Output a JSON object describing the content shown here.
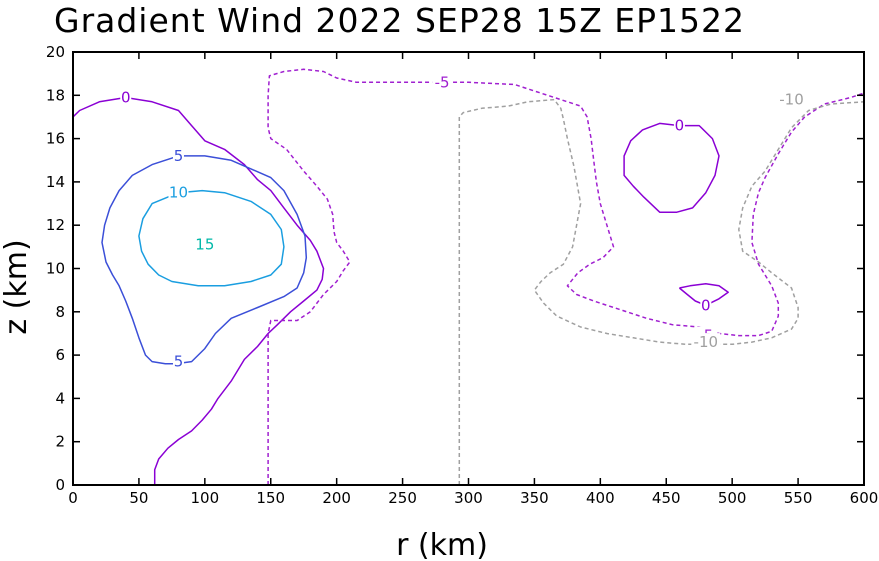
{
  "chart_data": {
    "type": "contour",
    "title": "Gradient Wind 2022 SEP28 15Z  EP1522",
    "xlabel": "r (km)",
    "ylabel": "z (km)",
    "xlim": [
      0,
      600
    ],
    "ylim": [
      0,
      20
    ],
    "xticks": [
      0,
      50,
      100,
      150,
      200,
      250,
      300,
      350,
      400,
      450,
      500,
      550,
      600
    ],
    "yticks": [
      0,
      2,
      4,
      6,
      8,
      10,
      12,
      14,
      16,
      18,
      20
    ],
    "grid": false,
    "colors": {
      "0": "#8a00d4",
      "5": "#3b4fd8",
      "10": "#1a9ee0",
      "15": "#00b8a8",
      "-5": "#a020d0",
      "-10": "#a0a0a0"
    },
    "contours": [
      {
        "level": 0,
        "style": "solid",
        "color": "#8a00d4",
        "label": "0",
        "label_at": [
          40,
          17.9
        ],
        "points": [
          [
            0,
            17.0
          ],
          [
            5,
            17.3
          ],
          [
            20,
            17.7
          ],
          [
            40,
            17.9
          ],
          [
            60,
            17.7
          ],
          [
            80,
            17.3
          ],
          [
            90,
            16.6
          ],
          [
            100,
            15.9
          ],
          [
            115,
            15.5
          ],
          [
            130,
            14.8
          ],
          [
            140,
            14.1
          ],
          [
            150,
            13.6
          ],
          [
            160,
            12.8
          ],
          [
            170,
            12.0
          ],
          [
            180,
            11.3
          ],
          [
            185,
            10.8
          ],
          [
            190,
            10.0
          ],
          [
            189,
            9.5
          ],
          [
            185,
            9.0
          ],
          [
            175,
            8.5
          ],
          [
            165,
            8.0
          ],
          [
            155,
            7.4
          ],
          [
            148,
            7.0
          ],
          [
            140,
            6.4
          ],
          [
            130,
            5.8
          ],
          [
            120,
            4.8
          ],
          [
            110,
            4.0
          ],
          [
            105,
            3.5
          ],
          [
            98,
            3.0
          ],
          [
            90,
            2.5
          ],
          [
            80,
            2.1
          ],
          [
            72,
            1.7
          ],
          [
            65,
            1.2
          ],
          [
            62,
            0.7
          ],
          [
            62,
            0.0
          ]
        ]
      },
      {
        "level": 0,
        "style": "solid",
        "color": "#8a00d4",
        "label": "0",
        "label_at": [
          460,
          16.6
        ],
        "points": [
          [
            460,
            16.6
          ],
          [
            475,
            16.6
          ],
          [
            485,
            16.0
          ],
          [
            490,
            15.2
          ],
          [
            487,
            14.3
          ],
          [
            480,
            13.5
          ],
          [
            470,
            12.8
          ],
          [
            458,
            12.6
          ],
          [
            445,
            12.6
          ],
          [
            433,
            13.3
          ],
          [
            425,
            13.8
          ],
          [
            418,
            14.3
          ],
          [
            418,
            15.2
          ],
          [
            423,
            15.9
          ],
          [
            432,
            16.4
          ],
          [
            445,
            16.7
          ],
          [
            460,
            16.6
          ]
        ]
      },
      {
        "level": 0,
        "style": "solid",
        "color": "#8a00d4",
        "label": "0",
        "label_at": [
          480,
          8.3
        ],
        "points": [
          [
            460,
            9.1
          ],
          [
            468,
            9.2
          ],
          [
            480,
            9.3
          ],
          [
            490,
            9.2
          ],
          [
            497,
            8.9
          ],
          [
            490,
            8.6
          ],
          [
            480,
            8.3
          ],
          [
            472,
            8.5
          ],
          [
            466,
            8.8
          ],
          [
            460,
            9.1
          ]
        ]
      },
      {
        "level": 5,
        "style": "solid",
        "color": "#3b4fd8",
        "label": "5",
        "label_at": [
          80,
          15.2
        ],
        "points": [
          [
            80,
            15.2
          ],
          [
            60,
            14.8
          ],
          [
            45,
            14.3
          ],
          [
            35,
            13.6
          ],
          [
            28,
            12.8
          ],
          [
            24,
            12.0
          ],
          [
            22,
            11.2
          ],
          [
            25,
            10.3
          ],
          [
            30,
            9.7
          ],
          [
            35,
            9.2
          ],
          [
            40,
            8.5
          ],
          [
            45,
            7.7
          ],
          [
            50,
            6.8
          ],
          [
            55,
            6.0
          ],
          [
            60,
            5.7
          ],
          [
            70,
            5.6
          ],
          [
            78,
            5.6
          ],
          [
            90,
            5.7
          ],
          [
            100,
            6.3
          ],
          [
            108,
            7.0
          ],
          [
            120,
            7.7
          ],
          [
            140,
            8.2
          ],
          [
            160,
            8.7
          ],
          [
            170,
            9.1
          ],
          [
            175,
            9.8
          ],
          [
            177,
            10.5
          ],
          [
            176,
            11.5
          ],
          [
            170,
            12.5
          ],
          [
            160,
            13.6
          ],
          [
            150,
            14.2
          ],
          [
            135,
            14.6
          ],
          [
            120,
            15.0
          ],
          [
            100,
            15.2
          ],
          [
            80,
            15.2
          ]
        ]
      },
      {
        "level": 10,
        "style": "solid",
        "color": "#1a9ee0",
        "label": "10",
        "label_at": [
          80,
          13.5
        ],
        "points": [
          [
            80,
            13.5
          ],
          [
            60,
            13.0
          ],
          [
            53,
            12.3
          ],
          [
            50,
            11.5
          ],
          [
            52,
            10.8
          ],
          [
            57,
            10.2
          ],
          [
            65,
            9.7
          ],
          [
            75,
            9.4
          ],
          [
            95,
            9.2
          ],
          [
            115,
            9.2
          ],
          [
            135,
            9.4
          ],
          [
            150,
            9.7
          ],
          [
            158,
            10.2
          ],
          [
            160,
            11.0
          ],
          [
            158,
            11.8
          ],
          [
            150,
            12.5
          ],
          [
            135,
            13.1
          ],
          [
            115,
            13.5
          ],
          [
            98,
            13.6
          ],
          [
            80,
            13.5
          ]
        ]
      },
      {
        "level": -5,
        "style": "dashed",
        "color": "#a020d0",
        "label": "-5",
        "label_at": [
          280,
          18.6
        ],
        "points": [
          [
            148,
            0.0
          ],
          [
            148,
            2.0
          ],
          [
            148,
            4.0
          ],
          [
            148,
            6.0
          ],
          [
            148,
            7.0
          ],
          [
            150,
            7.6
          ],
          [
            170,
            7.6
          ],
          [
            180,
            8.0
          ],
          [
            190,
            8.8
          ],
          [
            200,
            9.4
          ],
          [
            205,
            9.9
          ],
          [
            210,
            10.3
          ],
          [
            205,
            10.8
          ],
          [
            200,
            11.2
          ],
          [
            198,
            11.7
          ],
          [
            197,
            12.5
          ],
          [
            193,
            13.2
          ],
          [
            185,
            13.8
          ],
          [
            175,
            14.5
          ],
          [
            162,
            15.5
          ],
          [
            150,
            16.0
          ],
          [
            148,
            16.5
          ],
          [
            148,
            17.0
          ],
          [
            148,
            18.0
          ],
          [
            149,
            18.9
          ],
          [
            160,
            19.1
          ],
          [
            175,
            19.2
          ],
          [
            190,
            19.1
          ],
          [
            200,
            18.8
          ],
          [
            215,
            18.6
          ],
          [
            240,
            18.6
          ],
          [
            260,
            18.6
          ],
          [
            280,
            18.6
          ],
          [
            300,
            18.6
          ],
          [
            335,
            18.5
          ],
          [
            350,
            18.2
          ],
          [
            370,
            17.8
          ],
          [
            385,
            17.5
          ],
          [
            390,
            17.0
          ],
          [
            393,
            16.0
          ],
          [
            395,
            15.0
          ],
          [
            397,
            14.0
          ],
          [
            400,
            13.0
          ],
          [
            405,
            12.0
          ],
          [
            410,
            11.0
          ],
          [
            402,
            10.5
          ],
          [
            392,
            10.2
          ],
          [
            383,
            9.8
          ],
          [
            375,
            9.2
          ],
          [
            382,
            8.8
          ],
          [
            395,
            8.5
          ],
          [
            415,
            8.1
          ],
          [
            435,
            7.7
          ],
          [
            455,
            7.4
          ],
          [
            475,
            7.3
          ],
          [
            490,
            7.0
          ],
          [
            505,
            6.9
          ],
          [
            520,
            6.9
          ],
          [
            530,
            7.1
          ],
          [
            535,
            7.8
          ],
          [
            535,
            8.4
          ],
          [
            530,
            9.2
          ],
          [
            520,
            10.2
          ],
          [
            515,
            11.2
          ],
          [
            516,
            12.5
          ],
          [
            520,
            13.5
          ],
          [
            525,
            14.2
          ],
          [
            535,
            15.3
          ],
          [
            545,
            16.3
          ],
          [
            555,
            17.0
          ],
          [
            570,
            17.6
          ],
          [
            590,
            17.9
          ],
          [
            600,
            18.1
          ]
        ]
      },
      {
        "level": -10,
        "style": "dashed",
        "color": "#a0a0a0",
        "label": "-10",
        "label_at": [
          545,
          17.8
        ],
        "points": [
          [
            293,
            0.0
          ],
          [
            293,
            2.0
          ],
          [
            293,
            4.0
          ],
          [
            293,
            6.0
          ],
          [
            293,
            8.0
          ],
          [
            293,
            10.0
          ],
          [
            293,
            12.0
          ],
          [
            293,
            14.0
          ],
          [
            293,
            16.0
          ],
          [
            293,
            17.0
          ],
          [
            296,
            17.2
          ],
          [
            310,
            17.4
          ],
          [
            330,
            17.5
          ],
          [
            345,
            17.7
          ],
          [
            365,
            17.8
          ],
          [
            370,
            17.4
          ],
          [
            372,
            16.9
          ],
          [
            375,
            16.0
          ],
          [
            380,
            14.7
          ],
          [
            385,
            13.0
          ],
          [
            382,
            12.0
          ],
          [
            379,
            11.0
          ],
          [
            372,
            10.2
          ],
          [
            362,
            9.8
          ],
          [
            355,
            9.4
          ],
          [
            350,
            9.0
          ],
          [
            357,
            8.4
          ],
          [
            367,
            7.8
          ],
          [
            385,
            7.3
          ],
          [
            405,
            7.0
          ],
          [
            425,
            6.8
          ],
          [
            445,
            6.6
          ],
          [
            465,
            6.5
          ],
          [
            485,
            6.5
          ],
          [
            500,
            6.5
          ],
          [
            515,
            6.6
          ],
          [
            530,
            6.8
          ],
          [
            545,
            7.2
          ],
          [
            550,
            7.7
          ],
          [
            550,
            8.2
          ],
          [
            545,
            9.1
          ],
          [
            530,
            9.8
          ],
          [
            520,
            10.3
          ],
          [
            508,
            10.8
          ],
          [
            505,
            11.8
          ],
          [
            508,
            12.8
          ],
          [
            515,
            13.8
          ],
          [
            525,
            14.5
          ],
          [
            535,
            15.5
          ],
          [
            545,
            16.5
          ],
          [
            558,
            17.3
          ],
          [
            575,
            17.6
          ],
          [
            600,
            17.7
          ]
        ]
      }
    ],
    "labels": [
      {
        "text": "15",
        "x": 100,
        "y": 11.1,
        "color": "#00b8a8"
      },
      {
        "text": "5",
        "x": 80,
        "y": 5.7,
        "color": "#3b4fd8"
      },
      {
        "text": "-5",
        "x": 480,
        "y": 6.9,
        "color": "#a020d0"
      },
      {
        "text": "-10",
        "x": 480,
        "y": 6.6,
        "color": "#a0a0a0"
      }
    ]
  }
}
